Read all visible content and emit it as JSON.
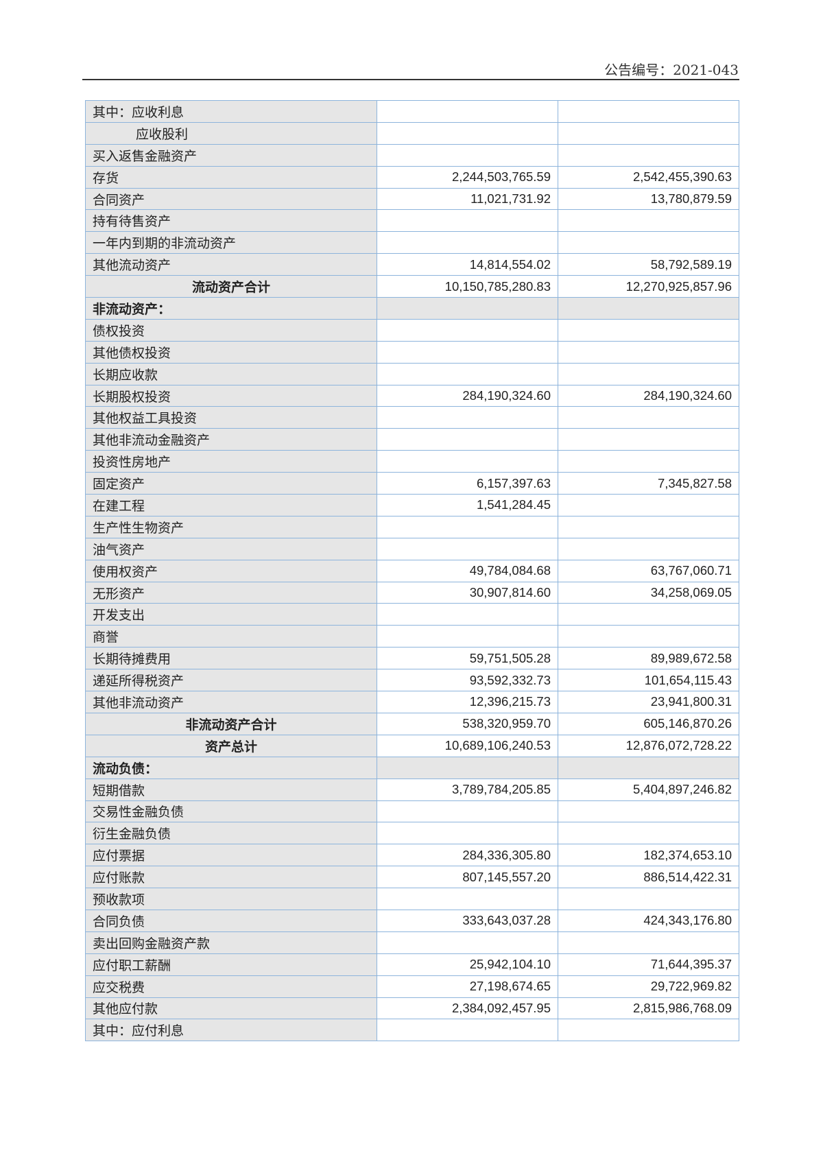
{
  "header": {
    "doc_number": "公告编号：2021-043"
  },
  "rows": [
    {
      "label": "其中：应收利息",
      "a": "",
      "b": ""
    },
    {
      "label": "应收股利",
      "a": "",
      "b": "",
      "indent": true
    },
    {
      "label": "买入返售金融资产",
      "a": "",
      "b": ""
    },
    {
      "label": "存货",
      "a": "2,244,503,765.59",
      "b": "2,542,455,390.63"
    },
    {
      "label": "合同资产",
      "a": "11,021,731.92",
      "b": "13,780,879.59"
    },
    {
      "label": "持有待售资产",
      "a": "",
      "b": ""
    },
    {
      "label": "一年内到期的非流动资产",
      "a": "",
      "b": ""
    },
    {
      "label": "其他流动资产",
      "a": "14,814,554.02",
      "b": "58,792,589.19"
    },
    {
      "label": "流动资产合计",
      "a": "10,150,785,280.83",
      "b": "12,270,925,857.96",
      "type": "total"
    },
    {
      "label": "非流动资产：",
      "a": "",
      "b": "",
      "type": "section"
    },
    {
      "label": "债权投资",
      "a": "",
      "b": ""
    },
    {
      "label": "其他债权投资",
      "a": "",
      "b": ""
    },
    {
      "label": "长期应收款",
      "a": "",
      "b": ""
    },
    {
      "label": "长期股权投资",
      "a": "284,190,324.60",
      "b": "284,190,324.60"
    },
    {
      "label": "其他权益工具投资",
      "a": "",
      "b": ""
    },
    {
      "label": "其他非流动金融资产",
      "a": "",
      "b": ""
    },
    {
      "label": "投资性房地产",
      "a": "",
      "b": ""
    },
    {
      "label": "固定资产",
      "a": "6,157,397.63",
      "b": "7,345,827.58"
    },
    {
      "label": "在建工程",
      "a": "1,541,284.45",
      "b": ""
    },
    {
      "label": "生产性生物资产",
      "a": "",
      "b": ""
    },
    {
      "label": "油气资产",
      "a": "",
      "b": ""
    },
    {
      "label": "使用权资产",
      "a": "49,784,084.68",
      "b": "63,767,060.71"
    },
    {
      "label": "无形资产",
      "a": "30,907,814.60",
      "b": "34,258,069.05"
    },
    {
      "label": "开发支出",
      "a": "",
      "b": ""
    },
    {
      "label": "商誉",
      "a": "",
      "b": ""
    },
    {
      "label": "长期待摊费用",
      "a": "59,751,505.28",
      "b": "89,989,672.58"
    },
    {
      "label": "递延所得税资产",
      "a": "93,592,332.73",
      "b": "101,654,115.43"
    },
    {
      "label": "其他非流动资产",
      "a": "12,396,215.73",
      "b": "23,941,800.31"
    },
    {
      "label": "非流动资产合计",
      "a": "538,320,959.70",
      "b": "605,146,870.26",
      "type": "total"
    },
    {
      "label": "资产总计",
      "a": "10,689,106,240.53",
      "b": "12,876,072,728.22",
      "type": "total"
    },
    {
      "label": "流动负债：",
      "a": "",
      "b": "",
      "type": "section"
    },
    {
      "label": "短期借款",
      "a": "3,789,784,205.85",
      "b": "5,404,897,246.82"
    },
    {
      "label": "交易性金融负债",
      "a": "",
      "b": ""
    },
    {
      "label": "衍生金融负债",
      "a": "",
      "b": ""
    },
    {
      "label": "应付票据",
      "a": "284,336,305.80",
      "b": "182,374,653.10"
    },
    {
      "label": "应付账款",
      "a": "807,145,557.20",
      "b": "886,514,422.31"
    },
    {
      "label": "预收款项",
      "a": "",
      "b": ""
    },
    {
      "label": "合同负债",
      "a": "333,643,037.28",
      "b": "424,343,176.80"
    },
    {
      "label": "卖出回购金融资产款",
      "a": "",
      "b": ""
    },
    {
      "label": "应付职工薪酬",
      "a": "25,942,104.10",
      "b": "71,644,395.37"
    },
    {
      "label": "应交税费",
      "a": "27,198,674.65",
      "b": "29,722,969.82"
    },
    {
      "label": "其他应付款",
      "a": "2,384,092,457.95",
      "b": "2,815,986,768.09"
    },
    {
      "label": "其中：应付利息",
      "a": "",
      "b": ""
    }
  ]
}
